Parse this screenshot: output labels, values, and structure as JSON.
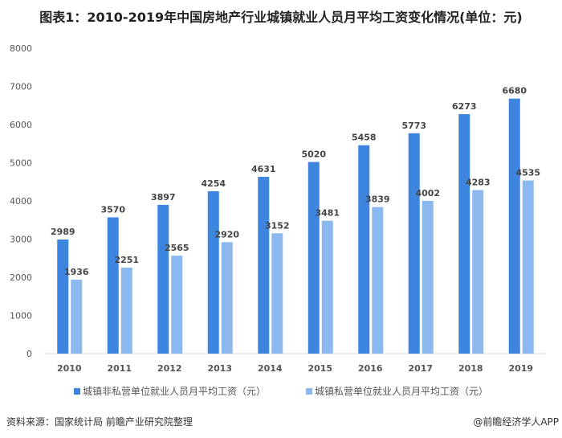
{
  "chart_data": {
    "type": "bar",
    "title": "图表1：2010-2019年中国房地产行业城镇就业人员月平均工资变化情况(单位：元)",
    "categories": [
      "2010",
      "2011",
      "2012",
      "2013",
      "2014",
      "2015",
      "2016",
      "2017",
      "2018",
      "2019"
    ],
    "series": [
      {
        "name": "城镇非私营单位就业人员月平均工资（元）",
        "color": "#3e85df",
        "values": [
          2989,
          3570,
          3897,
          4254,
          4631,
          5020,
          5458,
          5773,
          6273,
          6680
        ]
      },
      {
        "name": "城镇私营单位就业人员月平均工资（元）",
        "color": "#8cb8f0",
        "values": [
          1936,
          2251,
          2565,
          2920,
          3152,
          3481,
          3839,
          4002,
          4283,
          4535
        ]
      }
    ],
    "yticks": [
      0,
      1000,
      2000,
      3000,
      4000,
      5000,
      6000,
      7000,
      8000
    ],
    "ylim": [
      0,
      8000
    ],
    "xlabel": "",
    "ylabel": "",
    "legend": "bottom",
    "grid": false
  },
  "footer": {
    "source": "资料来源：国家统计局 前瞻产业研究院整理",
    "credit": "@前瞻经济学人APP"
  }
}
